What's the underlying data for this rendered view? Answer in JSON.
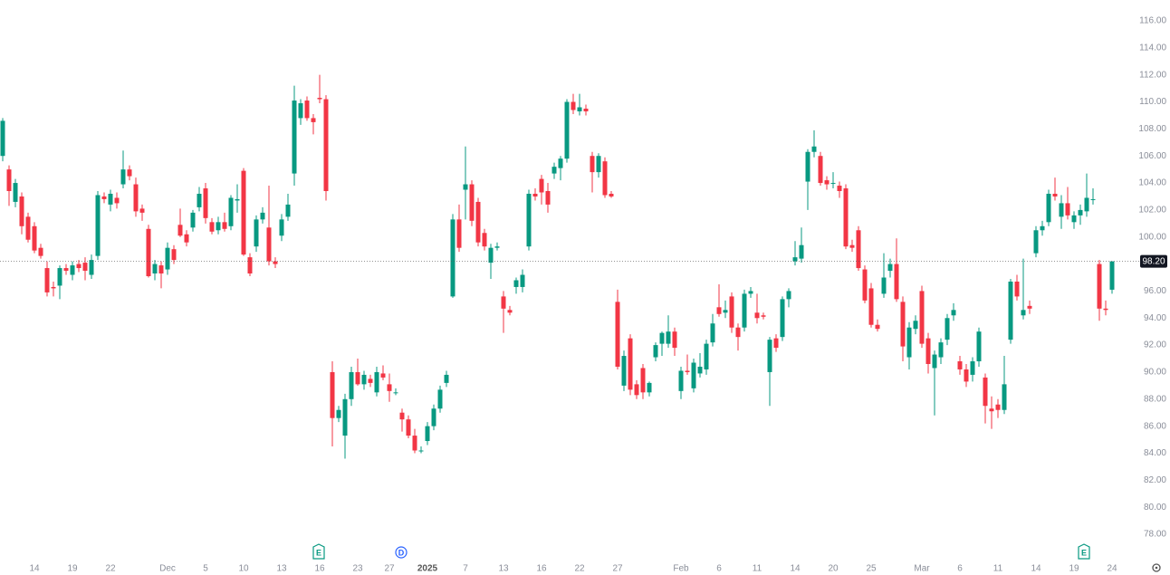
{
  "chart_data": {
    "type": "candlestick",
    "up_color": "#089981",
    "down_color": "#f23645",
    "ylim": [
      78,
      116
    ],
    "yticks": [
      {
        "value": 78,
        "label": "78.00"
      },
      {
        "value": 80,
        "label": "80.00"
      },
      {
        "value": 82,
        "label": "82.00"
      },
      {
        "value": 84,
        "label": "84.00"
      },
      {
        "value": 86,
        "label": "86.00"
      },
      {
        "value": 88,
        "label": "88.00"
      },
      {
        "value": 90,
        "label": "90.00"
      },
      {
        "value": 92,
        "label": "92.00"
      },
      {
        "value": 94,
        "label": "94.00"
      },
      {
        "value": 96,
        "label": "96.00"
      },
      {
        "value": 98,
        "label": "98.00"
      },
      {
        "value": 100,
        "label": "100.00"
      },
      {
        "value": 102,
        "label": "102.00"
      },
      {
        "value": 104,
        "label": "104.00"
      },
      {
        "value": 106,
        "label": "106.00"
      },
      {
        "value": 108,
        "label": "108.00"
      },
      {
        "value": 110,
        "label": "110.00"
      },
      {
        "value": 112,
        "label": "112.00"
      },
      {
        "value": 114,
        "label": "114.00"
      },
      {
        "value": 116,
        "label": "116.00"
      }
    ],
    "last_price": {
      "value": 98.2,
      "label": "98.20"
    },
    "events": [
      "E",
      "D",
      "E"
    ],
    "categories": [
      null,
      null,
      null,
      null,
      null,
      "14",
      null,
      null,
      null,
      null,
      null,
      "19",
      null,
      null,
      null,
      null,
      null,
      "22",
      null,
      null,
      null,
      null,
      null,
      null,
      null,
      null,
      "Dec",
      null,
      null,
      null,
      null,
      null,
      "5",
      null,
      null,
      null,
      null,
      null,
      "10",
      null,
      null,
      null,
      null,
      null,
      "13",
      null,
      null,
      null,
      null,
      null,
      "16",
      null,
      null,
      null,
      null,
      null,
      "23",
      null,
      null,
      null,
      null,
      "27",
      null,
      null,
      null,
      null,
      null,
      "2025",
      null,
      null,
      null,
      null,
      null,
      "7",
      null,
      null,
      null,
      null,
      null,
      "13",
      null,
      null,
      null,
      null,
      null,
      "16",
      null,
      null,
      null,
      null,
      null,
      "22",
      null,
      null,
      null,
      null,
      null,
      "27",
      null,
      null,
      null,
      null,
      null,
      null,
      null,
      null,
      null,
      "Feb",
      null,
      null,
      null,
      null,
      null,
      "6",
      null,
      null,
      null,
      null,
      null,
      "11",
      null,
      null,
      null,
      null,
      null,
      "14",
      null,
      null,
      null,
      null,
      null,
      "20",
      null,
      null,
      null,
      null,
      null,
      "25",
      null,
      null,
      null,
      null,
      null,
      null,
      null,
      "Mar",
      null,
      null,
      null,
      null,
      null,
      "6",
      null,
      null,
      null,
      null,
      null,
      "11",
      null,
      null,
      null,
      null,
      null,
      "14",
      null,
      null,
      null,
      null,
      null,
      "19",
      null,
      null,
      null,
      null,
      null,
      "24"
    ],
    "candles": [
      [
        106,
        108.8,
        105.6,
        108.6
      ],
      [
        105,
        105.3,
        102.3,
        103.4
      ],
      [
        102.6,
        104.3,
        102.2,
        104
      ],
      [
        103,
        103.3,
        100.2,
        100.8
      ],
      [
        101.5,
        101.8,
        99.6,
        99.8
      ],
      [
        100.8,
        101.1,
        98.8,
        99
      ],
      [
        99.2,
        99.5,
        98.4,
        98.6
      ],
      [
        97.7,
        98.2,
        95.6,
        95.9
      ],
      [
        96.3,
        96.7,
        95.6,
        96.2
      ],
      [
        96.4,
        97.9,
        95.4,
        97.7
      ],
      [
        97.7,
        98,
        97.2,
        97.5
      ],
      [
        97.2,
        98.2,
        96.8,
        97.9
      ],
      [
        98,
        98.3,
        97.4,
        97.7
      ],
      [
        98.1,
        98.5,
        96.8,
        97.5
      ],
      [
        97.2,
        98.7,
        96.9,
        98.3
      ],
      [
        98.6,
        103.4,
        98.3,
        103.1
      ],
      [
        103,
        103.3,
        102.5,
        102.8
      ],
      [
        102.4,
        103.5,
        101.9,
        103.2
      ],
      [
        102.9,
        103.3,
        102.1,
        102.5
      ],
      [
        103.9,
        106.4,
        103.6,
        105
      ],
      [
        105,
        105.3,
        104.2,
        104.5
      ],
      [
        103.9,
        104.4,
        101.5,
        101.9
      ],
      [
        102.1,
        102.4,
        101.2,
        101.8
      ],
      [
        100.6,
        100.9,
        97,
        97.1
      ],
      [
        97.3,
        98.3,
        96.8,
        98
      ],
      [
        97.9,
        98.2,
        96.2,
        97.3
      ],
      [
        97.6,
        99.6,
        97.2,
        99.2
      ],
      [
        99.1,
        99.4,
        98,
        98.3
      ],
      [
        100.9,
        102.1,
        100,
        100.1
      ],
      [
        100.2,
        100.5,
        99.3,
        99.6
      ],
      [
        100.7,
        102,
        100.4,
        101.8
      ],
      [
        102.2,
        103.7,
        101.9,
        103.2
      ],
      [
        103.6,
        104,
        101,
        101.4
      ],
      [
        101.1,
        101.4,
        100.2,
        100.4
      ],
      [
        100.5,
        101.5,
        100.2,
        101.1
      ],
      [
        101.1,
        101.8,
        100.4,
        100.6
      ],
      [
        100.8,
        103.1,
        100.5,
        102.9
      ],
      [
        102.7,
        103.9,
        101.8,
        102.8
      ],
      [
        104.9,
        105.1,
        98.6,
        98.7
      ],
      [
        98.5,
        98.8,
        97.1,
        97.3
      ],
      [
        99.3,
        101.6,
        98.9,
        101.3
      ],
      [
        101.3,
        102.2,
        101,
        101.8
      ],
      [
        100.7,
        103.8,
        97.9,
        98.2
      ],
      [
        98.2,
        98.5,
        97.7,
        98
      ],
      [
        100.1,
        101.7,
        99.7,
        101.3
      ],
      [
        101.5,
        103.2,
        101.2,
        102.4
      ],
      [
        104.7,
        111.2,
        103.8,
        110.1
      ],
      [
        108.8,
        110.2,
        108.3,
        109.9
      ],
      [
        110.1,
        110.4,
        108.6,
        108.8
      ],
      [
        108.8,
        109.1,
        107.6,
        108.5
      ],
      [
        110.3,
        112,
        109.9,
        110.2
      ],
      [
        110.2,
        110.5,
        102.7,
        103.4
      ],
      [
        90,
        90.8,
        84.5,
        86.6
      ],
      [
        86.6,
        87.5,
        86.3,
        87.2
      ],
      [
        85.3,
        88.4,
        83.6,
        88
      ],
      [
        88,
        90.4,
        87.5,
        90
      ],
      [
        90,
        91,
        89,
        89.1
      ],
      [
        89.1,
        90.1,
        88.7,
        89.8
      ],
      [
        89.5,
        89.8,
        88.9,
        89.2
      ],
      [
        88.5,
        90.4,
        88.2,
        90
      ],
      [
        89.9,
        90.5,
        89.4,
        89.6
      ],
      [
        89.1,
        89.9,
        87.8,
        88.6
      ],
      [
        88.5,
        88.8,
        88.3,
        88.5
      ],
      [
        87,
        87.3,
        85.6,
        86.5
      ],
      [
        86.5,
        86.8,
        85.1,
        85.3
      ],
      [
        85.3,
        85.8,
        84,
        84.2
      ],
      [
        84.2,
        84.5,
        84,
        84.2
      ],
      [
        84.9,
        86.3,
        84.6,
        86
      ],
      [
        86,
        87.6,
        85.7,
        87.3
      ],
      [
        87.3,
        89,
        87,
        88.7
      ],
      [
        89.2,
        90.1,
        88.9,
        89.8
      ],
      [
        95.6,
        101.7,
        95.5,
        101.3
      ],
      [
        101.3,
        102.4,
        98.9,
        99.2
      ],
      [
        103.5,
        106.7,
        101.3,
        103.9
      ],
      [
        103.9,
        104.2,
        100.8,
        101.2
      ],
      [
        102.6,
        102.9,
        99.3,
        99.6
      ],
      [
        100.3,
        100.6,
        99,
        99.3
      ],
      [
        98.1,
        99.5,
        96.9,
        99.2
      ],
      [
        99.2,
        99.6,
        99,
        99.3
      ],
      [
        95.6,
        96,
        92.9,
        94.7
      ],
      [
        94.6,
        94.9,
        94.2,
        94.4
      ],
      [
        96.3,
        97,
        95.8,
        96.8
      ],
      [
        96.3,
        97.6,
        95.9,
        97.2
      ],
      [
        99.3,
        103.5,
        99,
        103.2
      ],
      [
        103.2,
        103.6,
        102.7,
        103
      ],
      [
        104.3,
        104.6,
        102.4,
        103.3
      ],
      [
        103.4,
        104,
        101.8,
        102.4
      ],
      [
        104.7,
        105.5,
        104.3,
        105.2
      ],
      [
        105.1,
        106,
        104.2,
        105.8
      ],
      [
        105.8,
        110.2,
        105.5,
        110
      ],
      [
        110,
        110.6,
        109.1,
        109.4
      ],
      [
        109.3,
        110.6,
        109,
        109.6
      ],
      [
        109.5,
        109.8,
        109,
        109.3
      ],
      [
        106,
        106.3,
        103.3,
        104.8
      ],
      [
        104.8,
        106.2,
        104.4,
        106
      ],
      [
        105.6,
        105.9,
        102.9,
        103.1
      ],
      [
        103.2,
        103.4,
        102.9,
        103
      ],
      [
        95.2,
        96.1,
        90.2,
        90.4
      ],
      [
        89,
        91.6,
        88.6,
        91.2
      ],
      [
        92.5,
        92.8,
        88.3,
        88.7
      ],
      [
        89.1,
        89.4,
        88,
        88.3
      ],
      [
        90.3,
        90.6,
        88,
        88.5
      ],
      [
        88.5,
        89.3,
        88.2,
        89.2
      ],
      [
        91.1,
        92.2,
        90.8,
        92
      ],
      [
        92.1,
        93,
        91.2,
        92.9
      ],
      [
        92.1,
        94.2,
        91.8,
        93
      ],
      [
        93,
        93.3,
        91.2,
        91.8
      ],
      [
        88.6,
        90.4,
        88,
        90.1
      ],
      [
        90.1,
        91.3,
        89.8,
        90
      ],
      [
        88.8,
        91,
        88.5,
        90.7
      ],
      [
        89.9,
        91.4,
        89.6,
        90.4
      ],
      [
        90.2,
        92.4,
        89.8,
        92.1
      ],
      [
        92.2,
        94.3,
        91.9,
        93.6
      ],
      [
        94.8,
        96.5,
        94.1,
        94.3
      ],
      [
        94.4,
        95.3,
        94,
        94.6
      ],
      [
        95.6,
        95.9,
        92.9,
        93.3
      ],
      [
        93.3,
        93.6,
        91.6,
        92.6
      ],
      [
        93.3,
        96.1,
        93,
        95.8
      ],
      [
        95.8,
        96.3,
        95.5,
        96
      ],
      [
        94.4,
        95.8,
        93.6,
        94
      ],
      [
        94.2,
        94.4,
        93.9,
        94.1
      ],
      [
        90,
        92.6,
        87.5,
        92.4
      ],
      [
        92.5,
        92.8,
        91.5,
        91.8
      ],
      [
        92.6,
        95.6,
        92.3,
        95.4
      ],
      [
        95.4,
        96.2,
        94.8,
        96
      ],
      [
        98.2,
        99.7,
        97.9,
        98.5
      ],
      [
        98.4,
        100.7,
        98.1,
        99.4
      ],
      [
        104.1,
        106.5,
        102,
        106.3
      ],
      [
        106.3,
        107.9,
        105.9,
        106.7
      ],
      [
        106,
        106.3,
        103.8,
        104
      ],
      [
        104.2,
        104.5,
        103.5,
        103.9
      ],
      [
        104,
        104.8,
        103.6,
        104
      ],
      [
        103.8,
        104.1,
        102.9,
        103.4
      ],
      [
        103.6,
        103.9,
        99.1,
        99.3
      ],
      [
        99.4,
        99.8,
        98.9,
        99.2
      ],
      [
        100.5,
        100.8,
        97.5,
        97.7
      ],
      [
        97.6,
        97.9,
        95.1,
        95.3
      ],
      [
        96.2,
        96.6,
        93.3,
        93.5
      ],
      [
        93.5,
        93.9,
        93,
        93.2
      ],
      [
        95.8,
        98.8,
        95.5,
        97
      ],
      [
        97.5,
        98.4,
        97,
        98
      ],
      [
        98,
        99.9,
        95.2,
        95.4
      ],
      [
        95.2,
        95.6,
        90.8,
        91.9
      ],
      [
        91.1,
        93.7,
        90.2,
        93.3
      ],
      [
        93.2,
        94.2,
        92.8,
        93.8
      ],
      [
        96,
        96.4,
        91.8,
        92.1
      ],
      [
        92.5,
        92.9,
        89.9,
        90.6
      ],
      [
        90.3,
        91.6,
        86.8,
        91.3
      ],
      [
        91.1,
        92.5,
        90.6,
        92.2
      ],
      [
        92.4,
        94.3,
        92,
        94
      ],
      [
        94.2,
        95.1,
        93.8,
        94.6
      ],
      [
        90.8,
        91.2,
        89.8,
        90.2
      ],
      [
        90.2,
        90.6,
        88.9,
        89.3
      ],
      [
        89.8,
        91.1,
        89.3,
        90.8
      ],
      [
        90.8,
        93.3,
        90.4,
        93
      ],
      [
        89.6,
        89.9,
        86.2,
        87.5
      ],
      [
        87.3,
        88.2,
        85.8,
        87.1
      ],
      [
        87.6,
        88,
        86.6,
        87.2
      ],
      [
        87.2,
        91.2,
        86.9,
        89.1
      ],
      [
        92.4,
        96.9,
        92.1,
        96.7
      ],
      [
        96.7,
        97.2,
        95.3,
        95.6
      ],
      [
        94.2,
        98.4,
        93.9,
        94.6
      ],
      [
        94.9,
        95.3,
        94.3,
        94.7
      ],
      [
        98.8,
        100.8,
        98.5,
        100.5
      ],
      [
        100.5,
        101.2,
        100.1,
        100.8
      ],
      [
        101.1,
        103.5,
        100.8,
        103.2
      ],
      [
        103.2,
        104.4,
        102.7,
        103
      ],
      [
        101.5,
        103.1,
        100.6,
        102.5
      ],
      [
        102.5,
        103.7,
        101.3,
        101.6
      ],
      [
        101.1,
        101.9,
        100.6,
        101.6
      ],
      [
        101.6,
        102.4,
        100.9,
        102
      ],
      [
        101.9,
        104.7,
        101.5,
        102.9
      ],
      [
        102.8,
        103.6,
        102.4,
        102.8
      ],
      [
        98,
        98.3,
        93.8,
        94.7
      ],
      [
        94.7,
        95.3,
        94.2,
        94.6
      ],
      [
        96.1,
        98.2,
        95.8,
        98.2
      ]
    ]
  }
}
